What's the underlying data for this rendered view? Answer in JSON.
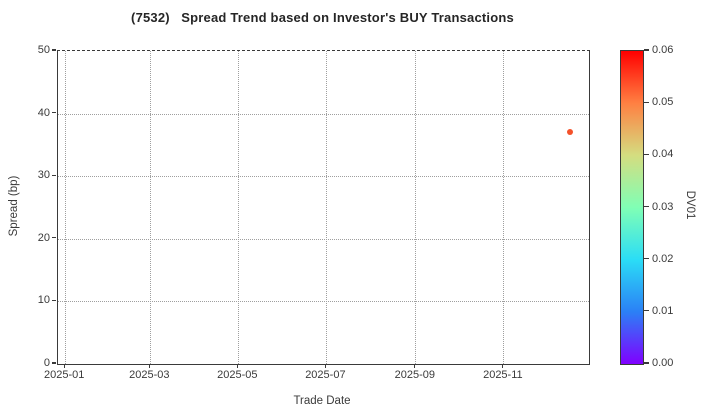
{
  "chart_data": {
    "type": "scatter",
    "title": "(7532)   Spread Trend based on Investor's BUY Transactions",
    "xlabel": "Trade Date",
    "ylabel": "Spread (bp)",
    "xlim": [
      "2024-12-27",
      "2025-12-30"
    ],
    "ylim": [
      0,
      50
    ],
    "x_ticks": [
      {
        "label": "2025-01",
        "date": "2025-01-01"
      },
      {
        "label": "2025-03",
        "date": "2025-03-01"
      },
      {
        "label": "2025-05",
        "date": "2025-05-01"
      },
      {
        "label": "2025-07",
        "date": "2025-07-01"
      },
      {
        "label": "2025-09",
        "date": "2025-09-01"
      },
      {
        "label": "2025-11",
        "date": "2025-11-01"
      }
    ],
    "y_ticks": [
      0,
      10,
      20,
      30,
      40,
      50
    ],
    "grid": true,
    "legend": "none",
    "points": [
      {
        "x": "2025-12-17",
        "y": 37.1,
        "dv01": 0.053,
        "color": "#f4512a"
      }
    ],
    "colorbar": {
      "label": "DV01",
      "range": [
        0.0,
        0.06
      ],
      "ticks": [
        "0.00",
        "0.01",
        "0.02",
        "0.03",
        "0.04",
        "0.05",
        "0.06"
      ],
      "colormap": "rainbow",
      "gradient_stops_bottom_to_top": [
        "#8000ff",
        "#2b80f6",
        "#2bddf6",
        "#80ffb5",
        "#d4dd80",
        "#ff8042",
        "#ff0000"
      ]
    },
    "colors": {
      "spine": "#3a3a3a",
      "grid": "#9f9f9f",
      "text": "#3a3a3a",
      "title_text": "#262626",
      "background": "#ffffff"
    }
  }
}
